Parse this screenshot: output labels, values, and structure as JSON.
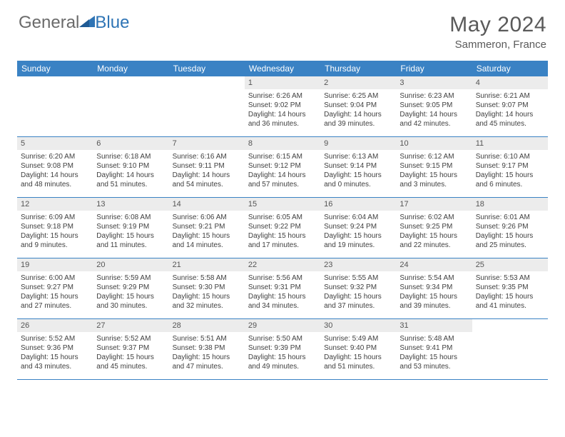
{
  "brand": {
    "part1": "General",
    "part2": "Blue"
  },
  "title": "May 2024",
  "location": "Sammeron, France",
  "colors": {
    "header_bg": "#3a82c4",
    "daynum_bg": "#ececec",
    "text": "#404040",
    "brand_gray": "#6a6a6a",
    "brand_blue": "#2e74b5"
  },
  "weekdays": [
    "Sunday",
    "Monday",
    "Tuesday",
    "Wednesday",
    "Thursday",
    "Friday",
    "Saturday"
  ],
  "weeks": [
    [
      {
        "n": "",
        "sr": "",
        "ss": "",
        "dl": ""
      },
      {
        "n": "",
        "sr": "",
        "ss": "",
        "dl": ""
      },
      {
        "n": "",
        "sr": "",
        "ss": "",
        "dl": ""
      },
      {
        "n": "1",
        "sr": "Sunrise: 6:26 AM",
        "ss": "Sunset: 9:02 PM",
        "dl": "Daylight: 14 hours and 36 minutes."
      },
      {
        "n": "2",
        "sr": "Sunrise: 6:25 AM",
        "ss": "Sunset: 9:04 PM",
        "dl": "Daylight: 14 hours and 39 minutes."
      },
      {
        "n": "3",
        "sr": "Sunrise: 6:23 AM",
        "ss": "Sunset: 9:05 PM",
        "dl": "Daylight: 14 hours and 42 minutes."
      },
      {
        "n": "4",
        "sr": "Sunrise: 6:21 AM",
        "ss": "Sunset: 9:07 PM",
        "dl": "Daylight: 14 hours and 45 minutes."
      }
    ],
    [
      {
        "n": "5",
        "sr": "Sunrise: 6:20 AM",
        "ss": "Sunset: 9:08 PM",
        "dl": "Daylight: 14 hours and 48 minutes."
      },
      {
        "n": "6",
        "sr": "Sunrise: 6:18 AM",
        "ss": "Sunset: 9:10 PM",
        "dl": "Daylight: 14 hours and 51 minutes."
      },
      {
        "n": "7",
        "sr": "Sunrise: 6:16 AM",
        "ss": "Sunset: 9:11 PM",
        "dl": "Daylight: 14 hours and 54 minutes."
      },
      {
        "n": "8",
        "sr": "Sunrise: 6:15 AM",
        "ss": "Sunset: 9:12 PM",
        "dl": "Daylight: 14 hours and 57 minutes."
      },
      {
        "n": "9",
        "sr": "Sunrise: 6:13 AM",
        "ss": "Sunset: 9:14 PM",
        "dl": "Daylight: 15 hours and 0 minutes."
      },
      {
        "n": "10",
        "sr": "Sunrise: 6:12 AM",
        "ss": "Sunset: 9:15 PM",
        "dl": "Daylight: 15 hours and 3 minutes."
      },
      {
        "n": "11",
        "sr": "Sunrise: 6:10 AM",
        "ss": "Sunset: 9:17 PM",
        "dl": "Daylight: 15 hours and 6 minutes."
      }
    ],
    [
      {
        "n": "12",
        "sr": "Sunrise: 6:09 AM",
        "ss": "Sunset: 9:18 PM",
        "dl": "Daylight: 15 hours and 9 minutes."
      },
      {
        "n": "13",
        "sr": "Sunrise: 6:08 AM",
        "ss": "Sunset: 9:19 PM",
        "dl": "Daylight: 15 hours and 11 minutes."
      },
      {
        "n": "14",
        "sr": "Sunrise: 6:06 AM",
        "ss": "Sunset: 9:21 PM",
        "dl": "Daylight: 15 hours and 14 minutes."
      },
      {
        "n": "15",
        "sr": "Sunrise: 6:05 AM",
        "ss": "Sunset: 9:22 PM",
        "dl": "Daylight: 15 hours and 17 minutes."
      },
      {
        "n": "16",
        "sr": "Sunrise: 6:04 AM",
        "ss": "Sunset: 9:24 PM",
        "dl": "Daylight: 15 hours and 19 minutes."
      },
      {
        "n": "17",
        "sr": "Sunrise: 6:02 AM",
        "ss": "Sunset: 9:25 PM",
        "dl": "Daylight: 15 hours and 22 minutes."
      },
      {
        "n": "18",
        "sr": "Sunrise: 6:01 AM",
        "ss": "Sunset: 9:26 PM",
        "dl": "Daylight: 15 hours and 25 minutes."
      }
    ],
    [
      {
        "n": "19",
        "sr": "Sunrise: 6:00 AM",
        "ss": "Sunset: 9:27 PM",
        "dl": "Daylight: 15 hours and 27 minutes."
      },
      {
        "n": "20",
        "sr": "Sunrise: 5:59 AM",
        "ss": "Sunset: 9:29 PM",
        "dl": "Daylight: 15 hours and 30 minutes."
      },
      {
        "n": "21",
        "sr": "Sunrise: 5:58 AM",
        "ss": "Sunset: 9:30 PM",
        "dl": "Daylight: 15 hours and 32 minutes."
      },
      {
        "n": "22",
        "sr": "Sunrise: 5:56 AM",
        "ss": "Sunset: 9:31 PM",
        "dl": "Daylight: 15 hours and 34 minutes."
      },
      {
        "n": "23",
        "sr": "Sunrise: 5:55 AM",
        "ss": "Sunset: 9:32 PM",
        "dl": "Daylight: 15 hours and 37 minutes."
      },
      {
        "n": "24",
        "sr": "Sunrise: 5:54 AM",
        "ss": "Sunset: 9:34 PM",
        "dl": "Daylight: 15 hours and 39 minutes."
      },
      {
        "n": "25",
        "sr": "Sunrise: 5:53 AM",
        "ss": "Sunset: 9:35 PM",
        "dl": "Daylight: 15 hours and 41 minutes."
      }
    ],
    [
      {
        "n": "26",
        "sr": "Sunrise: 5:52 AM",
        "ss": "Sunset: 9:36 PM",
        "dl": "Daylight: 15 hours and 43 minutes."
      },
      {
        "n": "27",
        "sr": "Sunrise: 5:52 AM",
        "ss": "Sunset: 9:37 PM",
        "dl": "Daylight: 15 hours and 45 minutes."
      },
      {
        "n": "28",
        "sr": "Sunrise: 5:51 AM",
        "ss": "Sunset: 9:38 PM",
        "dl": "Daylight: 15 hours and 47 minutes."
      },
      {
        "n": "29",
        "sr": "Sunrise: 5:50 AM",
        "ss": "Sunset: 9:39 PM",
        "dl": "Daylight: 15 hours and 49 minutes."
      },
      {
        "n": "30",
        "sr": "Sunrise: 5:49 AM",
        "ss": "Sunset: 9:40 PM",
        "dl": "Daylight: 15 hours and 51 minutes."
      },
      {
        "n": "31",
        "sr": "Sunrise: 5:48 AM",
        "ss": "Sunset: 9:41 PM",
        "dl": "Daylight: 15 hours and 53 minutes."
      },
      {
        "n": "",
        "sr": "",
        "ss": "",
        "dl": ""
      }
    ]
  ]
}
